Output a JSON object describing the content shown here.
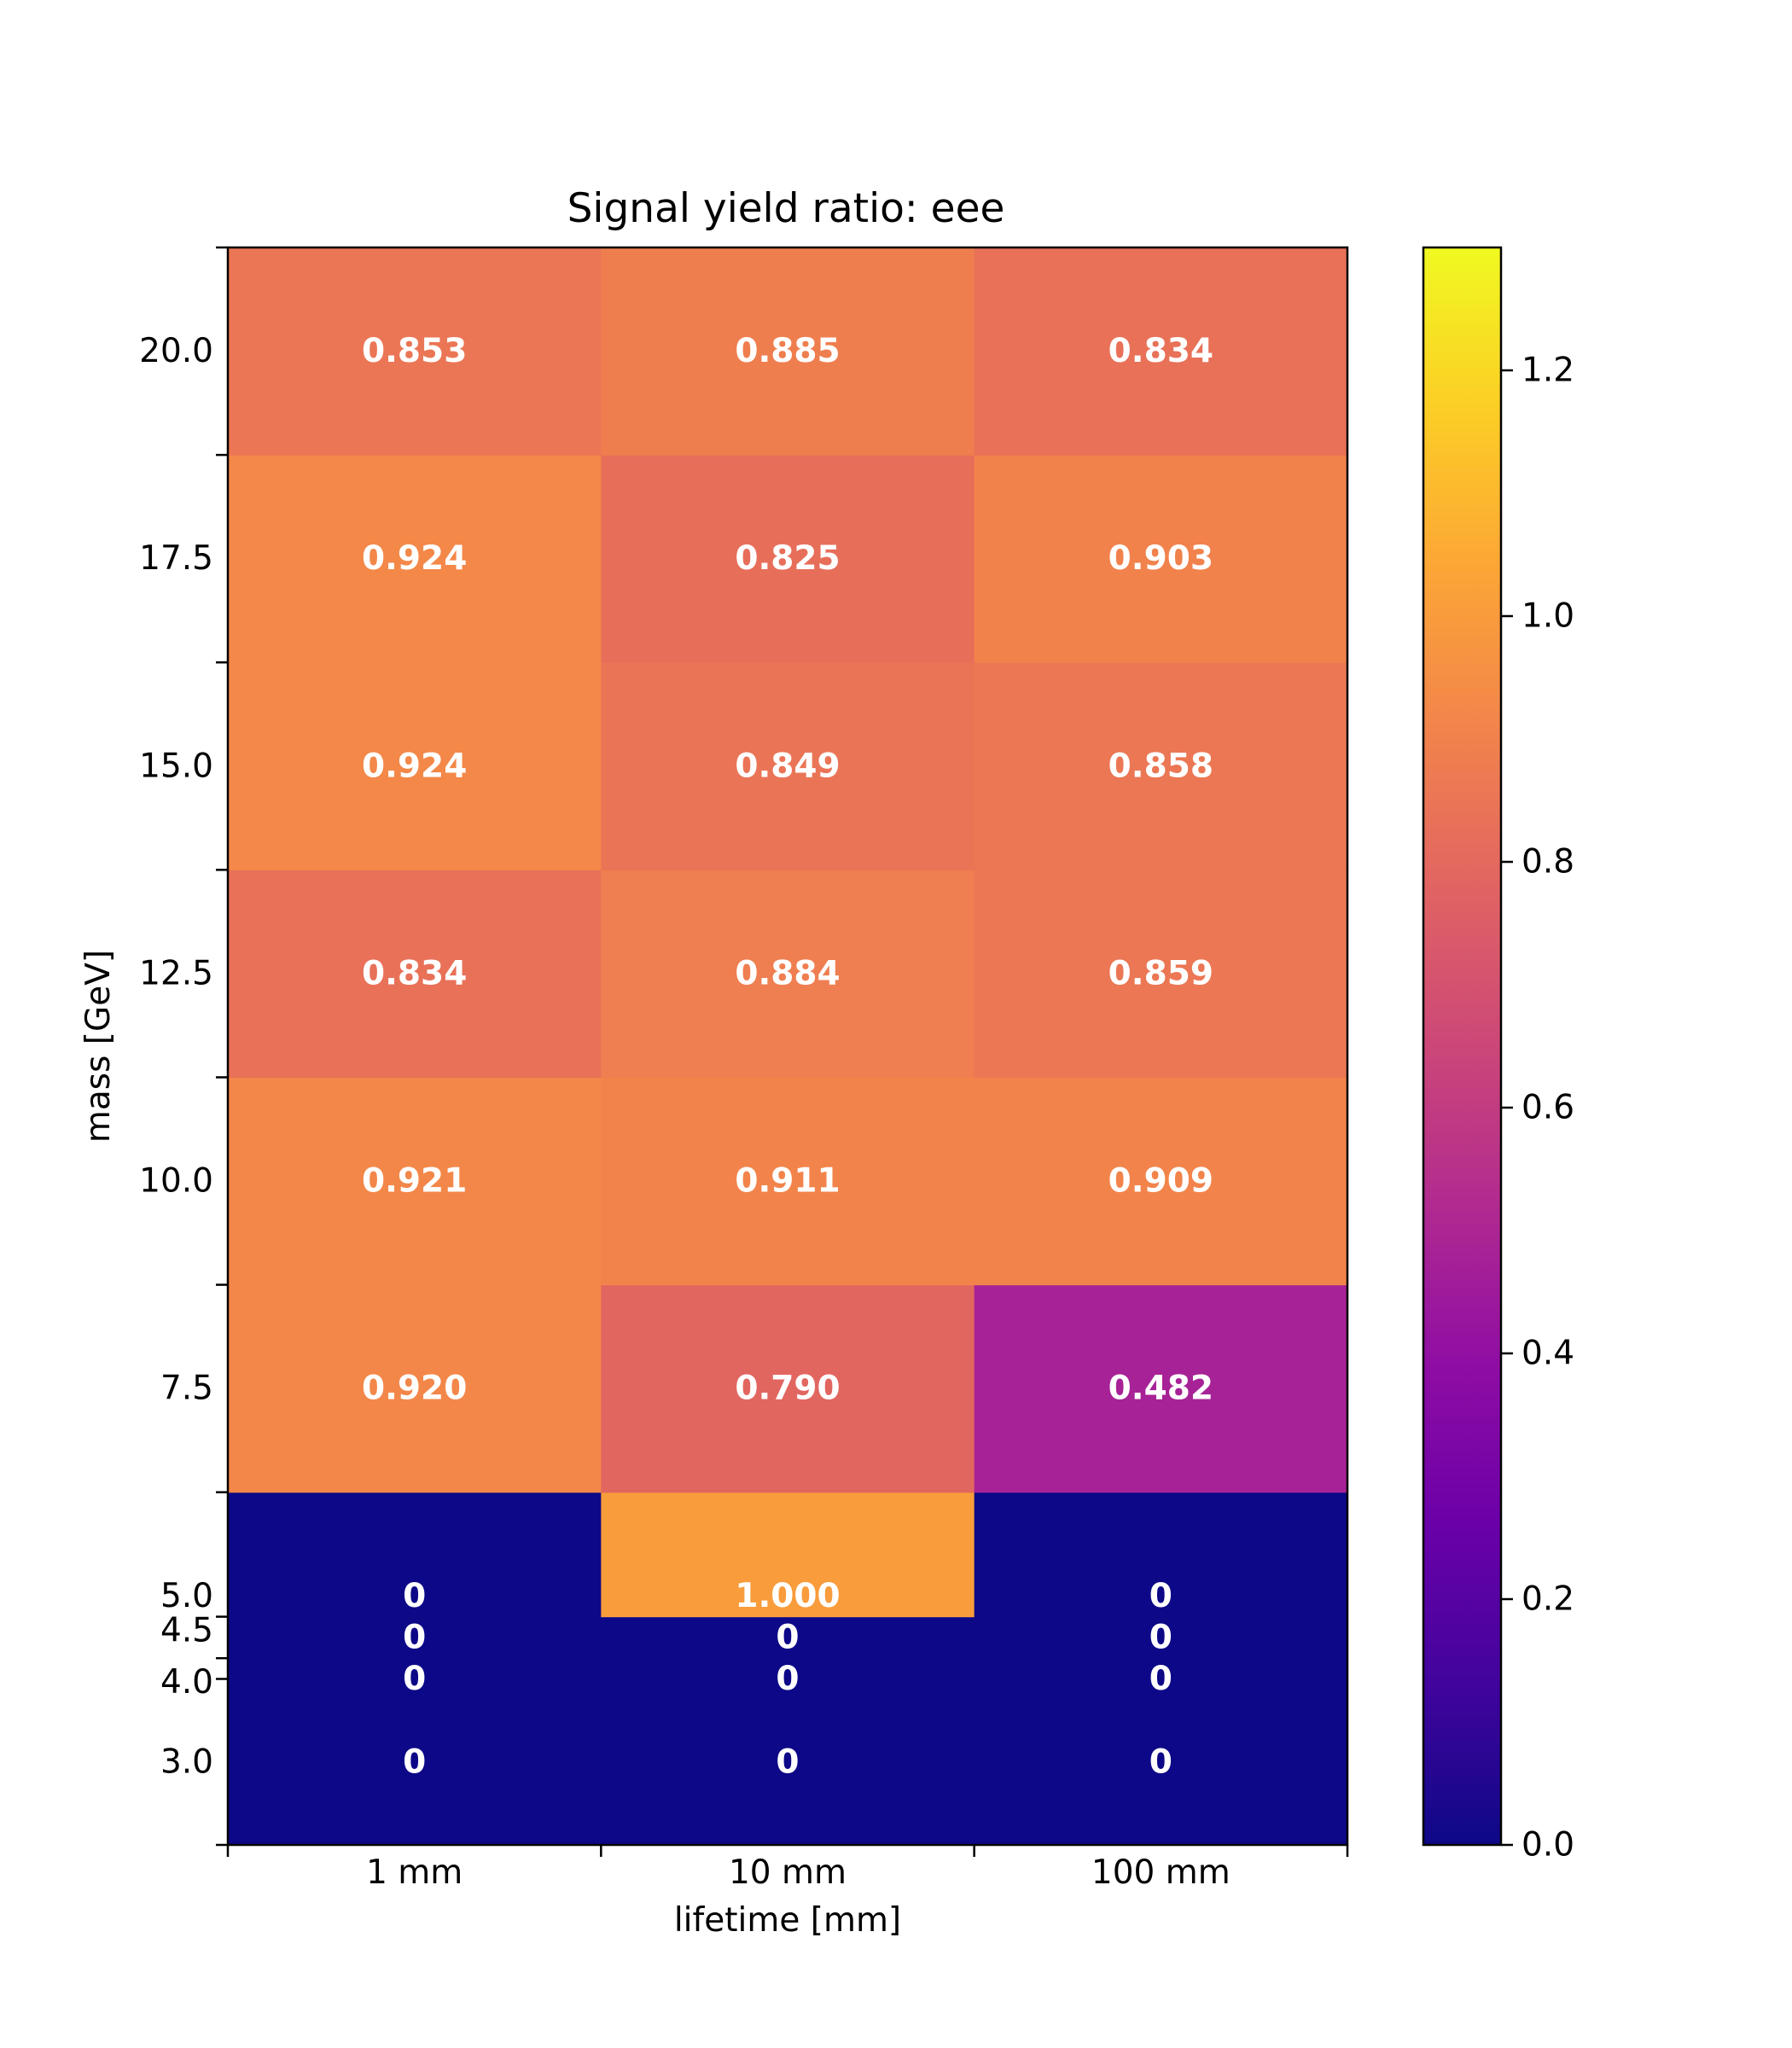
{
  "chart_data": {
    "type": "heatmap",
    "title": "Signal yield ratio: eee",
    "xlabel": "lifetime [mm]",
    "ylabel": "mass [GeV]",
    "x_categories": [
      "1 mm",
      "10 mm",
      "100 mm"
    ],
    "y_edges": [
      2.0,
      4.0,
      4.25,
      4.75,
      6.25,
      8.75,
      11.25,
      13.75,
      16.25,
      18.75,
      21.25
    ],
    "y_tick_values": [
      3.0,
      4.0,
      4.5,
      5.0,
      7.5,
      10.0,
      12.5,
      15.0,
      17.5,
      20.0
    ],
    "y_tick_labels": [
      "3.0",
      "4.0",
      "4.5",
      "5.0",
      "7.5",
      "10.0",
      "12.5",
      "15.0",
      "17.5",
      "20.0"
    ],
    "rows": [
      {
        "mass": "3.0",
        "values": [
          0,
          0,
          0
        ],
        "labels": [
          "0",
          "0",
          "0"
        ]
      },
      {
        "mass": "4.0",
        "values": [
          0,
          0,
          0
        ],
        "labels": [
          "0",
          "0",
          "0"
        ]
      },
      {
        "mass": "4.5",
        "values": [
          0,
          0,
          0
        ],
        "labels": [
          "0",
          "0",
          "0"
        ]
      },
      {
        "mass": "5.0",
        "values": [
          0,
          1.0,
          0
        ],
        "labels": [
          "0",
          "1.000",
          "0"
        ]
      },
      {
        "mass": "7.5",
        "values": [
          0.92,
          0.79,
          0.482
        ],
        "labels": [
          "0.920",
          "0.790",
          "0.482"
        ]
      },
      {
        "mass": "10.0",
        "values": [
          0.921,
          0.911,
          0.909
        ],
        "labels": [
          "0.921",
          "0.911",
          "0.909"
        ]
      },
      {
        "mass": "12.5",
        "values": [
          0.834,
          0.884,
          0.859
        ],
        "labels": [
          "0.834",
          "0.884",
          "0.859"
        ]
      },
      {
        "mass": "15.0",
        "values": [
          0.924,
          0.849,
          0.858
        ],
        "labels": [
          "0.924",
          "0.849",
          "0.858"
        ]
      },
      {
        "mass": "17.5",
        "values": [
          0.924,
          0.825,
          0.903
        ],
        "labels": [
          "0.924",
          "0.825",
          "0.903"
        ]
      },
      {
        "mass": "20.0",
        "values": [
          0.853,
          0.885,
          0.834
        ],
        "labels": [
          "0.853",
          "0.885",
          "0.834"
        ]
      }
    ],
    "colorbar": {
      "colormap": "plasma",
      "range": [
        0.0,
        1.3
      ],
      "ticks": [
        0.0,
        0.2,
        0.4,
        0.6,
        0.8,
        1.0,
        1.2
      ],
      "tick_labels": [
        "0.0",
        "0.2",
        "0.4",
        "0.6",
        "0.8",
        "1.0",
        "1.2"
      ]
    },
    "grid": false
  }
}
